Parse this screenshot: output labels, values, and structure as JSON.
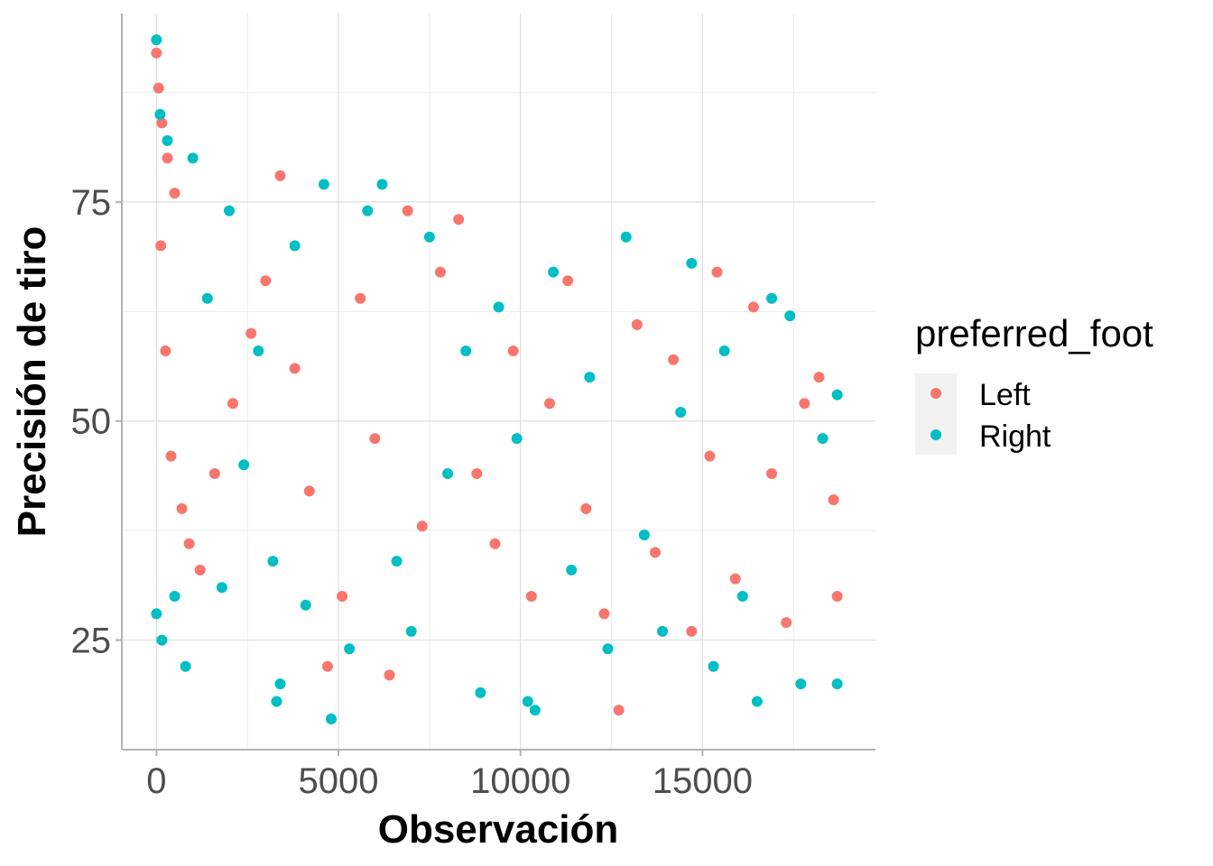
{
  "chart_data": {
    "type": "scatter",
    "title": "",
    "xlabel": "Observación",
    "ylabel": "Precisión de tiro",
    "xlim": [
      -950,
      19750
    ],
    "ylim": [
      12.5,
      96.5
    ],
    "x_ticks": [
      0,
      5000,
      10000,
      15000
    ],
    "x_tick_labels": [
      "0",
      "5000",
      "10000",
      "15000"
    ],
    "y_ticks": [
      25,
      50,
      75
    ],
    "y_tick_labels": [
      "25",
      "50",
      "75"
    ],
    "grid": true,
    "legend": {
      "title": "preferred_foot",
      "position": "right",
      "entries": [
        {
          "label": "Left",
          "color": "#F8766D"
        },
        {
          "label": "Right",
          "color": "#00BFC4"
        }
      ]
    },
    "series": [
      {
        "name": "Left",
        "color": "#F8766D",
        "points": [
          [
            0,
            92
          ],
          [
            60,
            88
          ],
          [
            150,
            84
          ],
          [
            300,
            80
          ],
          [
            500,
            76
          ],
          [
            120,
            70
          ],
          [
            250,
            58
          ],
          [
            400,
            46
          ],
          [
            700,
            40
          ],
          [
            900,
            36
          ],
          [
            1200,
            33
          ],
          [
            1600,
            44
          ],
          [
            2100,
            52
          ],
          [
            2600,
            60
          ],
          [
            3000,
            66
          ],
          [
            3400,
            78
          ],
          [
            3800,
            56
          ],
          [
            4200,
            42
          ],
          [
            4700,
            22
          ],
          [
            5100,
            30
          ],
          [
            5600,
            64
          ],
          [
            6000,
            48
          ],
          [
            6400,
            21
          ],
          [
            6900,
            74
          ],
          [
            7300,
            38
          ],
          [
            7800,
            67
          ],
          [
            8300,
            73
          ],
          [
            8800,
            44
          ],
          [
            9300,
            36
          ],
          [
            9800,
            58
          ],
          [
            10300,
            30
          ],
          [
            10800,
            52
          ],
          [
            11300,
            66
          ],
          [
            11800,
            40
          ],
          [
            12300,
            28
          ],
          [
            12700,
            17
          ],
          [
            13200,
            61
          ],
          [
            13700,
            35
          ],
          [
            14200,
            57
          ],
          [
            14700,
            26
          ],
          [
            15200,
            46
          ],
          [
            15400,
            67
          ],
          [
            15900,
            32
          ],
          [
            16400,
            63
          ],
          [
            16900,
            44
          ],
          [
            17300,
            27
          ],
          [
            17800,
            52
          ],
          [
            18200,
            55
          ],
          [
            18600,
            41
          ],
          [
            18700,
            30
          ]
        ]
      },
      {
        "name": "Right",
        "color": "#00BFC4",
        "points": [
          [
            0,
            93.5
          ],
          [
            0,
            28
          ],
          [
            100,
            85
          ],
          [
            150,
            25
          ],
          [
            300,
            82
          ],
          [
            500,
            30
          ],
          [
            800,
            22
          ],
          [
            1000,
            80
          ],
          [
            1400,
            64
          ],
          [
            1800,
            31
          ],
          [
            2000,
            74
          ],
          [
            2400,
            45
          ],
          [
            2800,
            58
          ],
          [
            3200,
            34
          ],
          [
            3300,
            18
          ],
          [
            3400,
            20
          ],
          [
            3800,
            70
          ],
          [
            4100,
            29
          ],
          [
            4600,
            77
          ],
          [
            4800,
            16
          ],
          [
            5300,
            24
          ],
          [
            5800,
            74
          ],
          [
            6200,
            77
          ],
          [
            6600,
            34
          ],
          [
            7000,
            26
          ],
          [
            7500,
            71
          ],
          [
            8000,
            44
          ],
          [
            8500,
            58
          ],
          [
            8900,
            19
          ],
          [
            9400,
            63
          ],
          [
            9900,
            48
          ],
          [
            10200,
            18
          ],
          [
            10400,
            17
          ],
          [
            10900,
            67
          ],
          [
            11400,
            33
          ],
          [
            11900,
            55
          ],
          [
            12400,
            24
          ],
          [
            12900,
            71
          ],
          [
            13400,
            37
          ],
          [
            13900,
            26
          ],
          [
            14400,
            51
          ],
          [
            14700,
            68
          ],
          [
            15300,
            22
          ],
          [
            15600,
            58
          ],
          [
            16100,
            30
          ],
          [
            16500,
            18
          ],
          [
            16900,
            64
          ],
          [
            17400,
            62
          ],
          [
            17700,
            20
          ],
          [
            18300,
            48
          ],
          [
            18700,
            20
          ],
          [
            18700,
            53
          ]
        ]
      }
    ]
  }
}
